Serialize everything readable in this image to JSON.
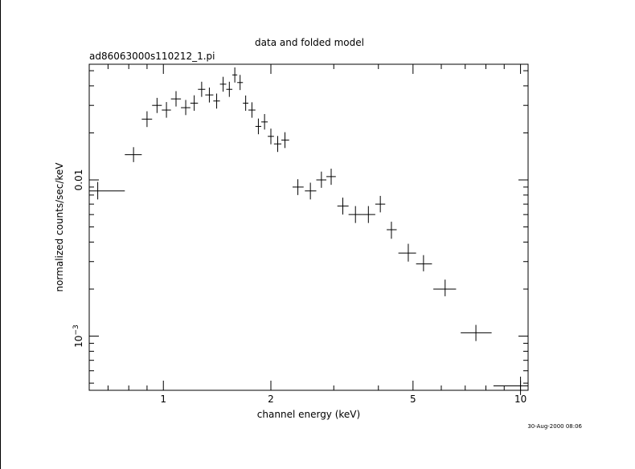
{
  "chart_data": {
    "type": "scatter",
    "title": "data and folded model",
    "subtitle": "ad86063000s110212_1.pi",
    "xlabel": "channel energy (keV)",
    "ylabel": "normalized counts/sec/keV",
    "x_scale": "log",
    "y_scale": "log",
    "xlim": [
      0.62,
      10.5
    ],
    "ylim": [
      0.00045,
      0.055
    ],
    "x_ticks": [
      {
        "value": 1,
        "label": "1"
      },
      {
        "value": 2,
        "label": "2"
      },
      {
        "value": 5,
        "label": "5"
      },
      {
        "value": 10,
        "label": "10"
      }
    ],
    "y_ticks": [
      {
        "value": 0.01,
        "label": "0.01"
      },
      {
        "value": 0.001,
        "label": "10^-3"
      }
    ],
    "grid": false,
    "legend": "none",
    "timestamp": "30-Aug-2000 08:06",
    "series": [
      {
        "points": [
          {
            "x": 0.655,
            "x_lo": 0.62,
            "x_hi": 0.78,
            "y": 0.0085,
            "y_lo": 0.0075,
            "y_hi": 0.0097
          },
          {
            "x": 0.825,
            "x_lo": 0.78,
            "x_hi": 0.87,
            "y": 0.0145,
            "y_lo": 0.013,
            "y_hi": 0.0162
          },
          {
            "x": 0.9,
            "x_lo": 0.87,
            "x_hi": 0.93,
            "y": 0.0245,
            "y_lo": 0.0218,
            "y_hi": 0.0275
          },
          {
            "x": 0.96,
            "x_lo": 0.93,
            "x_hi": 0.99,
            "y": 0.03,
            "y_lo": 0.0268,
            "y_hi": 0.0335
          },
          {
            "x": 1.02,
            "x_lo": 0.99,
            "x_hi": 1.05,
            "y": 0.028,
            "y_lo": 0.025,
            "y_hi": 0.0315
          },
          {
            "x": 1.085,
            "x_lo": 1.05,
            "x_hi": 1.12,
            "y": 0.033,
            "y_lo": 0.0295,
            "y_hi": 0.037
          },
          {
            "x": 1.155,
            "x_lo": 1.12,
            "x_hi": 1.19,
            "y": 0.029,
            "y_lo": 0.026,
            "y_hi": 0.0325
          },
          {
            "x": 1.22,
            "x_lo": 1.19,
            "x_hi": 1.25,
            "y": 0.031,
            "y_lo": 0.0277,
            "y_hi": 0.0348
          },
          {
            "x": 1.28,
            "x_lo": 1.25,
            "x_hi": 1.31,
            "y": 0.038,
            "y_lo": 0.034,
            "y_hi": 0.0425
          },
          {
            "x": 1.345,
            "x_lo": 1.31,
            "x_hi": 1.38,
            "y": 0.035,
            "y_lo": 0.0313,
            "y_hi": 0.039
          },
          {
            "x": 1.41,
            "x_lo": 1.38,
            "x_hi": 1.44,
            "y": 0.032,
            "y_lo": 0.0286,
            "y_hi": 0.0357
          },
          {
            "x": 1.47,
            "x_lo": 1.44,
            "x_hi": 1.5,
            "y": 0.041,
            "y_lo": 0.0367,
            "y_hi": 0.0457
          },
          {
            "x": 1.53,
            "x_lo": 1.5,
            "x_hi": 1.56,
            "y": 0.038,
            "y_lo": 0.034,
            "y_hi": 0.0425
          },
          {
            "x": 1.585,
            "x_lo": 1.56,
            "x_hi": 1.61,
            "y": 0.047,
            "y_lo": 0.042,
            "y_hi": 0.0525
          },
          {
            "x": 1.64,
            "x_lo": 1.61,
            "x_hi": 1.67,
            "y": 0.042,
            "y_lo": 0.0376,
            "y_hi": 0.047
          },
          {
            "x": 1.7,
            "x_lo": 1.67,
            "x_hi": 1.73,
            "y": 0.031,
            "y_lo": 0.0277,
            "y_hi": 0.0347
          },
          {
            "x": 1.77,
            "x_lo": 1.73,
            "x_hi": 1.81,
            "y": 0.028,
            "y_lo": 0.025,
            "y_hi": 0.0314
          },
          {
            "x": 1.845,
            "x_lo": 1.81,
            "x_hi": 1.88,
            "y": 0.022,
            "y_lo": 0.0196,
            "y_hi": 0.0247
          },
          {
            "x": 1.92,
            "x_lo": 1.88,
            "x_hi": 1.96,
            "y": 0.0235,
            "y_lo": 0.021,
            "y_hi": 0.0264
          },
          {
            "x": 2.0,
            "x_lo": 1.96,
            "x_hi": 2.04,
            "y": 0.019,
            "y_lo": 0.0169,
            "y_hi": 0.0213
          },
          {
            "x": 2.09,
            "x_lo": 2.04,
            "x_hi": 2.14,
            "y": 0.017,
            "y_lo": 0.0151,
            "y_hi": 0.0191
          },
          {
            "x": 2.19,
            "x_lo": 2.14,
            "x_hi": 2.25,
            "y": 0.018,
            "y_lo": 0.016,
            "y_hi": 0.0202
          },
          {
            "x": 2.38,
            "x_lo": 2.3,
            "x_hi": 2.47,
            "y": 0.009,
            "y_lo": 0.008,
            "y_hi": 0.0101
          },
          {
            "x": 2.58,
            "x_lo": 2.49,
            "x_hi": 2.68,
            "y": 0.0085,
            "y_lo": 0.0075,
            "y_hi": 0.0096
          },
          {
            "x": 2.77,
            "x_lo": 2.68,
            "x_hi": 2.86,
            "y": 0.01,
            "y_lo": 0.0089,
            "y_hi": 0.0113
          },
          {
            "x": 2.95,
            "x_lo": 2.86,
            "x_hi": 3.04,
            "y": 0.0105,
            "y_lo": 0.0093,
            "y_hi": 0.0118
          },
          {
            "x": 3.18,
            "x_lo": 3.07,
            "x_hi": 3.3,
            "y": 0.0068,
            "y_lo": 0.006,
            "y_hi": 0.0077
          },
          {
            "x": 3.45,
            "x_lo": 3.3,
            "x_hi": 3.6,
            "y": 0.006,
            "y_lo": 0.0053,
            "y_hi": 0.0068
          },
          {
            "x": 3.75,
            "x_lo": 3.6,
            "x_hi": 3.92,
            "y": 0.006,
            "y_lo": 0.0053,
            "y_hi": 0.0068
          },
          {
            "x": 4.05,
            "x_lo": 3.92,
            "x_hi": 4.18,
            "y": 0.007,
            "y_lo": 0.0062,
            "y_hi": 0.0079
          },
          {
            "x": 4.35,
            "x_lo": 4.22,
            "x_hi": 4.5,
            "y": 0.0048,
            "y_lo": 0.0042,
            "y_hi": 0.0054
          },
          {
            "x": 4.85,
            "x_lo": 4.55,
            "x_hi": 5.1,
            "y": 0.0034,
            "y_lo": 0.003,
            "y_hi": 0.0039
          },
          {
            "x": 5.35,
            "x_lo": 5.1,
            "x_hi": 5.65,
            "y": 0.0029,
            "y_lo": 0.0026,
            "y_hi": 0.0033
          },
          {
            "x": 6.15,
            "x_lo": 5.7,
            "x_hi": 6.6,
            "y": 0.002,
            "y_lo": 0.0018,
            "y_hi": 0.0023
          },
          {
            "x": 7.5,
            "x_lo": 6.8,
            "x_hi": 8.3,
            "y": 0.00105,
            "y_lo": 0.00093,
            "y_hi": 0.00118
          },
          {
            "x": 10.0,
            "x_lo": 8.4,
            "x_hi": 10.5,
            "y": 0.00048,
            "y_lo": 0.00042,
            "y_hi": 0.00055
          }
        ]
      }
    ]
  }
}
